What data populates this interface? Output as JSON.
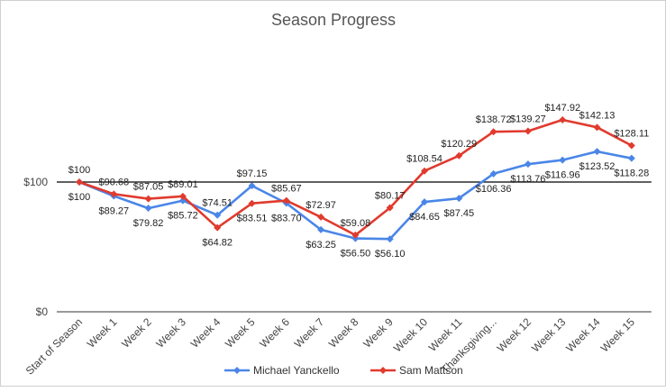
{
  "chart_data": {
    "type": "line",
    "title": "Season Progress",
    "xlabel": "",
    "ylabel": "",
    "categories": [
      "Start of Season",
      "Week 1",
      "Week 2",
      "Week 3",
      "Week 4",
      "Week 5",
      "Week 6",
      "Week 7",
      "Week 8",
      "Week 9",
      "Week 10",
      "Week 11",
      "Thanksgiving...",
      "Week 12",
      "Week 13",
      "Week 14",
      "Week 15"
    ],
    "y_tick_labels": [
      "$0",
      "$100"
    ],
    "ylim": [
      0,
      200
    ],
    "reference_line": 100,
    "grid": false,
    "legend": "bottom",
    "series": [
      {
        "name": "Michael Yanckello",
        "color": "#4a86e8",
        "values": [
          100,
          89.27,
          79.82,
          85.72,
          74.51,
          97.15,
          83.7,
          63.25,
          56.5,
          56.1,
          84.65,
          87.45,
          106.36,
          113.76,
          116.96,
          123.52,
          118.28
        ],
        "labels": [
          "$100",
          "$89.27",
          "$79.82",
          "$85.72",
          "$74.51",
          "$97.15",
          "$83.70",
          "$63.25",
          "$56.50",
          "$56.10",
          "$84.65",
          "$87.45",
          "$106.36",
          "$113.76",
          "$116.96",
          "$123.52",
          "$118.28"
        ]
      },
      {
        "name": "Sam Mattson",
        "color": "#e03b2e",
        "values": [
          100,
          90.68,
          87.05,
          89.01,
          64.82,
          83.51,
          85.67,
          72.97,
          59.08,
          80.17,
          108.54,
          120.29,
          138.72,
          139.27,
          147.92,
          142.13,
          128.11
        ],
        "labels": [
          "$100",
          "$90.68",
          "$87.05",
          "$89.01",
          "$64.82",
          "$83.51",
          "$85.67",
          "$72.97",
          "$59.08",
          "$80.17",
          "$108.54",
          "$120.29",
          "$138.72",
          "$139.27",
          "$147.92",
          "$142.13",
          "$128.11"
        ]
      }
    ]
  }
}
